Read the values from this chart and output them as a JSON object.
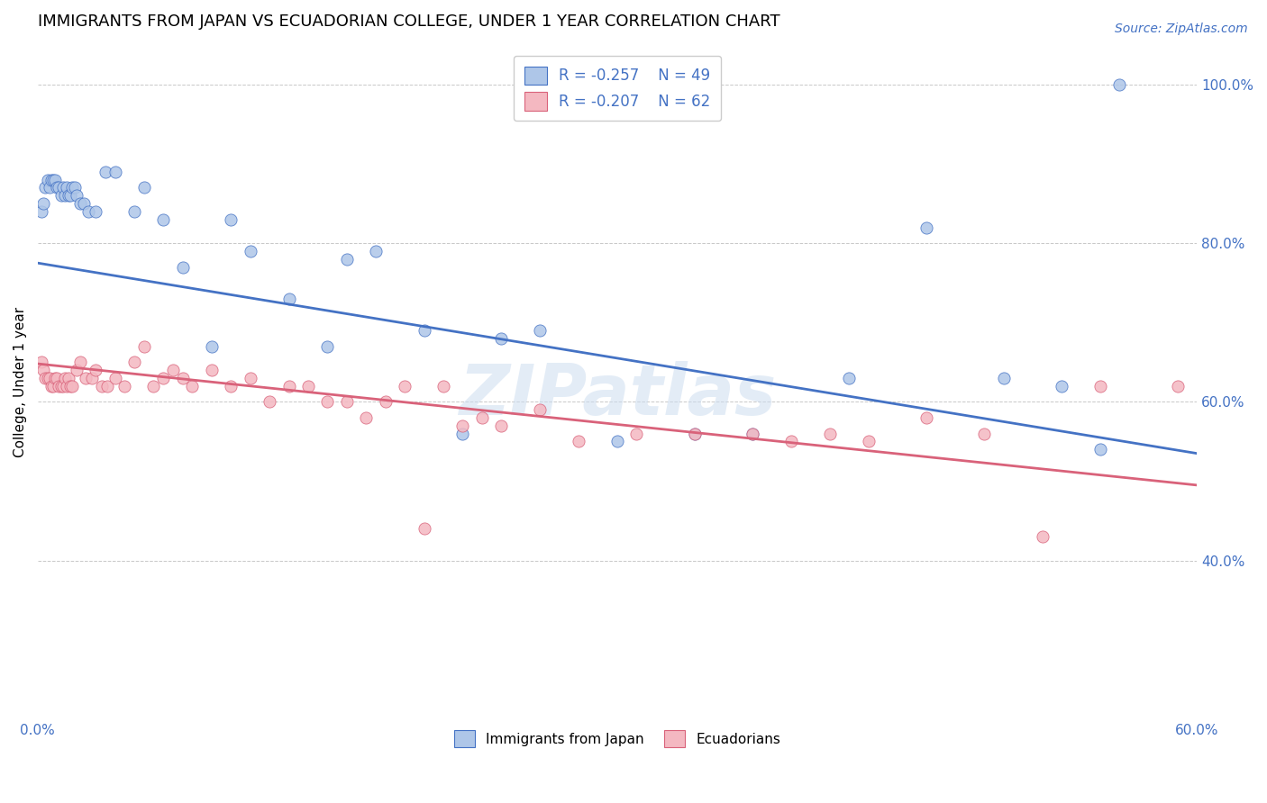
{
  "title": "IMMIGRANTS FROM JAPAN VS ECUADORIAN COLLEGE, UNDER 1 YEAR CORRELATION CHART",
  "source": "Source: ZipAtlas.com",
  "ylabel": "College, Under 1 year",
  "xmin": 0.0,
  "xmax": 0.6,
  "ymin": 0.2,
  "ymax": 1.05,
  "x_ticks": [
    0.0,
    0.1,
    0.2,
    0.3,
    0.4,
    0.5,
    0.6
  ],
  "x_tick_labels": [
    "0.0%",
    "",
    "",
    "",
    "",
    "",
    "60.0%"
  ],
  "y_ticks": [
    0.4,
    0.6,
    0.8,
    1.0
  ],
  "y_tick_labels": [
    "40.0%",
    "60.0%",
    "80.0%",
    "100.0%"
  ],
  "legend_entries": [
    {
      "label": "Immigrants from Japan",
      "color": "#aec6e8",
      "r": "-0.257",
      "n": "49"
    },
    {
      "label": "Ecuadorians",
      "color": "#f4b8c1",
      "r": "-0.207",
      "n": "62"
    }
  ],
  "blue_scatter_x": [
    0.002,
    0.003,
    0.004,
    0.005,
    0.006,
    0.007,
    0.008,
    0.009,
    0.01,
    0.011,
    0.012,
    0.013,
    0.014,
    0.015,
    0.016,
    0.017,
    0.018,
    0.019,
    0.02,
    0.022,
    0.024,
    0.026,
    0.03,
    0.035,
    0.04,
    0.05,
    0.055,
    0.065,
    0.075,
    0.09,
    0.1,
    0.11,
    0.13,
    0.15,
    0.16,
    0.175,
    0.2,
    0.22,
    0.24,
    0.26,
    0.3,
    0.34,
    0.37,
    0.42,
    0.46,
    0.5,
    0.53,
    0.55,
    0.56
  ],
  "blue_scatter_y": [
    0.84,
    0.85,
    0.87,
    0.88,
    0.87,
    0.88,
    0.88,
    0.88,
    0.87,
    0.87,
    0.86,
    0.87,
    0.86,
    0.87,
    0.86,
    0.86,
    0.87,
    0.87,
    0.86,
    0.85,
    0.85,
    0.84,
    0.84,
    0.89,
    0.89,
    0.84,
    0.87,
    0.83,
    0.77,
    0.67,
    0.83,
    0.79,
    0.73,
    0.67,
    0.78,
    0.79,
    0.69,
    0.56,
    0.68,
    0.69,
    0.55,
    0.56,
    0.56,
    0.63,
    0.82,
    0.63,
    0.62,
    0.54,
    1.0
  ],
  "pink_scatter_x": [
    0.002,
    0.003,
    0.004,
    0.005,
    0.006,
    0.007,
    0.008,
    0.009,
    0.01,
    0.011,
    0.012,
    0.013,
    0.014,
    0.015,
    0.016,
    0.017,
    0.018,
    0.02,
    0.022,
    0.025,
    0.028,
    0.03,
    0.033,
    0.036,
    0.04,
    0.045,
    0.05,
    0.055,
    0.06,
    0.065,
    0.07,
    0.075,
    0.08,
    0.09,
    0.1,
    0.11,
    0.12,
    0.13,
    0.14,
    0.15,
    0.16,
    0.17,
    0.18,
    0.19,
    0.2,
    0.21,
    0.22,
    0.23,
    0.24,
    0.26,
    0.28,
    0.31,
    0.34,
    0.37,
    0.39,
    0.41,
    0.43,
    0.46,
    0.49,
    0.52,
    0.55,
    0.59
  ],
  "pink_scatter_y": [
    0.65,
    0.64,
    0.63,
    0.63,
    0.63,
    0.62,
    0.62,
    0.63,
    0.63,
    0.62,
    0.62,
    0.62,
    0.63,
    0.62,
    0.63,
    0.62,
    0.62,
    0.64,
    0.65,
    0.63,
    0.63,
    0.64,
    0.62,
    0.62,
    0.63,
    0.62,
    0.65,
    0.67,
    0.62,
    0.63,
    0.64,
    0.63,
    0.62,
    0.64,
    0.62,
    0.63,
    0.6,
    0.62,
    0.62,
    0.6,
    0.6,
    0.58,
    0.6,
    0.62,
    0.44,
    0.62,
    0.57,
    0.58,
    0.57,
    0.59,
    0.55,
    0.56,
    0.56,
    0.56,
    0.55,
    0.56,
    0.55,
    0.58,
    0.56,
    0.43,
    0.62,
    0.62
  ],
  "blue_line_x": [
    0.0,
    0.6
  ],
  "blue_line_y": [
    0.775,
    0.535
  ],
  "pink_line_x": [
    0.0,
    0.6
  ],
  "pink_line_y": [
    0.648,
    0.495
  ],
  "scatter_color_blue": "#aec6e8",
  "scatter_color_pink": "#f4b8c1",
  "line_color_blue": "#4472c4",
  "line_color_pink": "#d9627a",
  "grid_color": "#c8c8c8",
  "watermark": "ZIPatlas",
  "background_color": "#ffffff",
  "title_fontsize": 13,
  "axis_label_fontsize": 11,
  "tick_fontsize": 11,
  "source_fontsize": 10
}
